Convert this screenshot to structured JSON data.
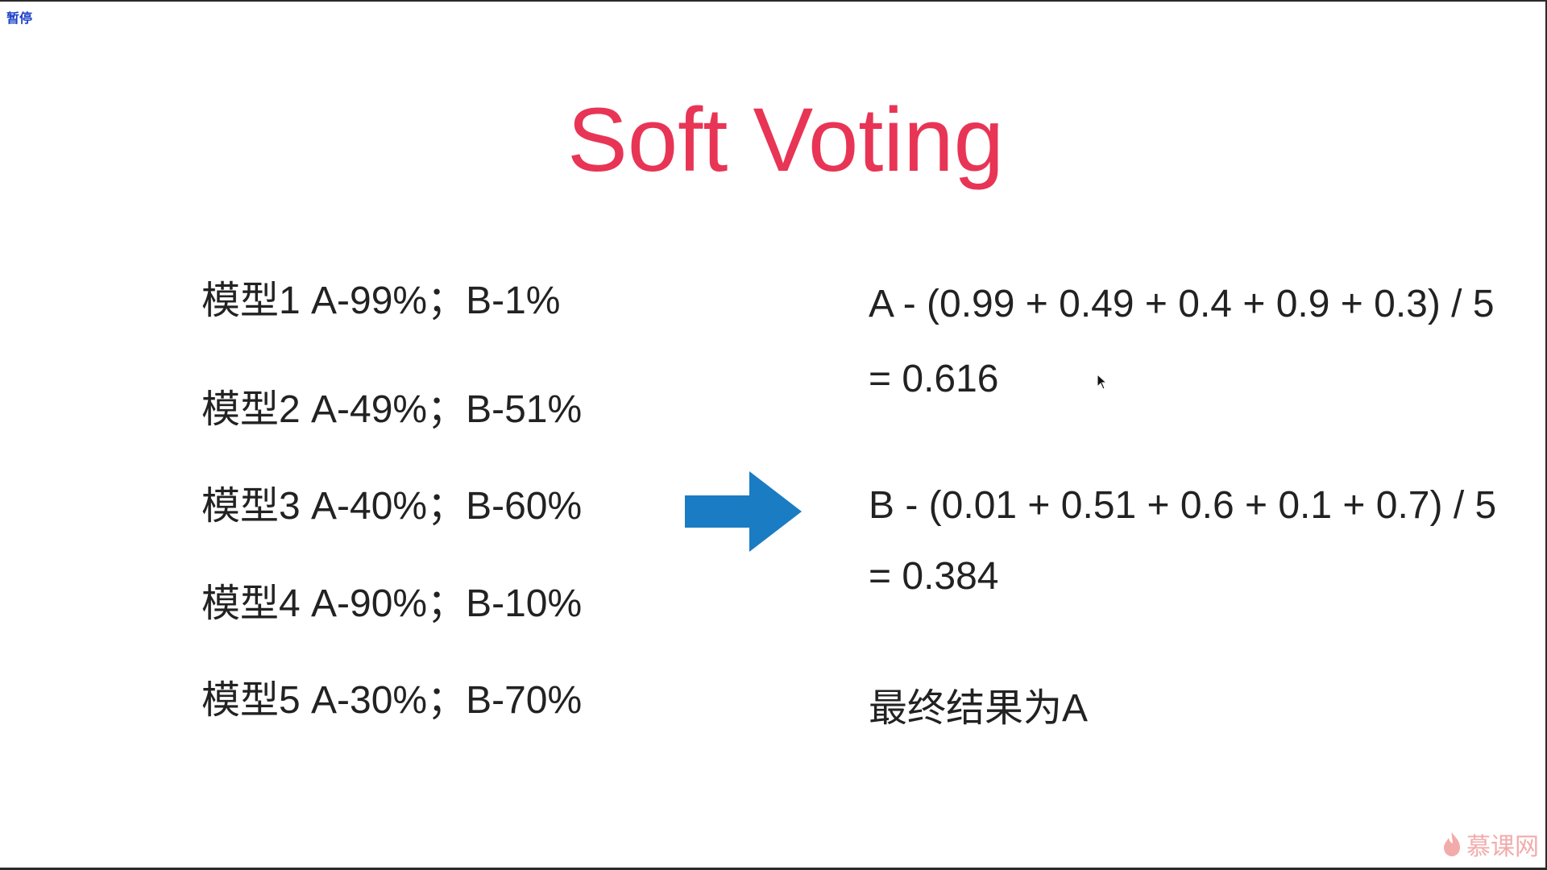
{
  "player": {
    "pause_label": "暂停"
  },
  "slide": {
    "title": "Soft Voting",
    "models": [
      {
        "label": "模型1 A-99%；B-1%"
      },
      {
        "label": "模型2 A-49%；B-51%"
      },
      {
        "label": "模型3 A-40%；B-60%"
      },
      {
        "label": "模型4 A-90%；B-10%"
      },
      {
        "label": "模型5 A-30%；B-70%"
      }
    ],
    "result_a": {
      "formula": "A - (0.99 + 0.49 + 0.4 + 0.9 + 0.3) / 5",
      "value": "= 0.616"
    },
    "result_b": {
      "formula": "B - (0.01 + 0.51 + 0.6 + 0.1 + 0.7) / 5",
      "value": "= 0.384"
    },
    "final": "最终结果为A"
  },
  "watermark": {
    "text": "慕课网"
  },
  "colors": {
    "title": "#e83555",
    "arrow": "#1a7cc3",
    "text": "#222222"
  },
  "icons": {
    "arrow": "right-arrow-icon",
    "cursor": "mouse-cursor-icon",
    "watermark_logo": "flame-icon"
  }
}
